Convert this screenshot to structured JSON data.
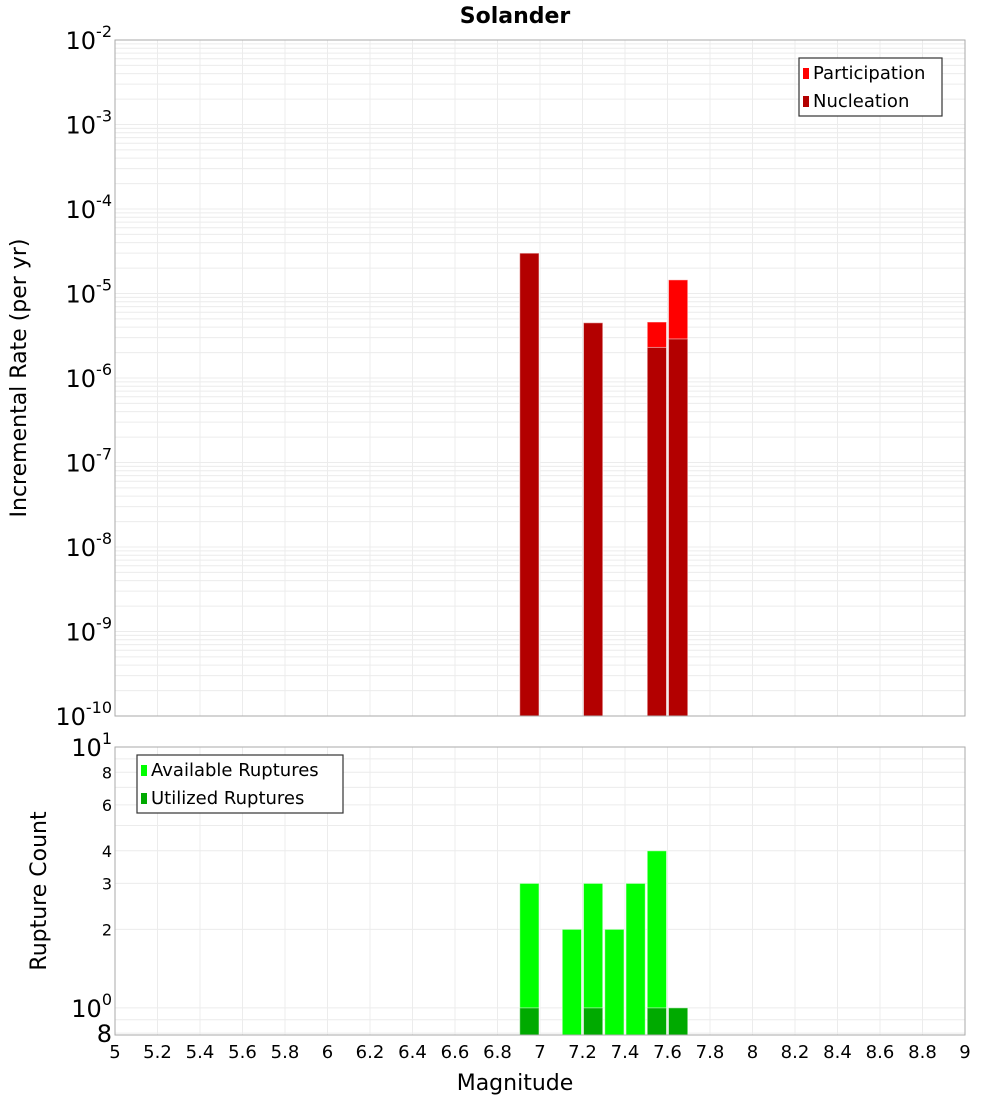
{
  "chart_data": [
    {
      "type": "bar",
      "title": "Solander",
      "xlabel": "",
      "ylabel": "Incremental Rate (per yr)",
      "yscale": "log",
      "xlim": [
        5,
        9
      ],
      "ylim": [
        1e-10,
        0.01
      ],
      "y_tick_labels": [
        {
          "base": "10",
          "exp": "-2",
          "value": 0.01
        },
        {
          "base": "10",
          "exp": "-3",
          "value": 0.001
        },
        {
          "base": "10",
          "exp": "-4",
          "value": 0.0001
        },
        {
          "base": "10",
          "exp": "-5",
          "value": 1e-05
        },
        {
          "base": "10",
          "exp": "-6",
          "value": 1e-06
        },
        {
          "base": "10",
          "exp": "-7",
          "value": 1e-07
        },
        {
          "base": "10",
          "exp": "-8",
          "value": 1e-08
        },
        {
          "base": "10",
          "exp": "-9",
          "value": 1e-09
        },
        {
          "base": "10",
          "exp": "-10",
          "value": 1e-10
        }
      ],
      "legend_position": "top-right",
      "bin_width": 0.1,
      "series": [
        {
          "name": "Participation",
          "color": "#ff0000",
          "x": [
            6.95,
            7.25,
            7.55,
            7.65
          ],
          "values": [
            3e-05,
            4.5e-06,
            4.6e-06,
            1.45e-05
          ]
        },
        {
          "name": "Nucleation",
          "color": "#b30000",
          "x": [
            6.95,
            7.25,
            7.55,
            7.65
          ],
          "values": [
            3e-05,
            4.5e-06,
            2.3e-06,
            2.9e-06
          ]
        }
      ]
    },
    {
      "type": "bar",
      "title": "",
      "xlabel": "Magnitude",
      "ylabel": "Rupture Count",
      "yscale": "log",
      "xlim": [
        5,
        9
      ],
      "ylim": [
        0.787,
        10
      ],
      "x_tick_labels": [
        "5",
        "5.2",
        "5.4",
        "5.6",
        "5.8",
        "6",
        "6.2",
        "6.4",
        "6.6",
        "6.8",
        "7",
        "7.2",
        "7.4",
        "7.6",
        "7.8",
        "8",
        "8.2",
        "8.4",
        "8.6",
        "8.8",
        "9"
      ],
      "y_tick_labels": [
        {
          "base": "10",
          "exp": "1",
          "value": 10,
          "big": true
        },
        {
          "base": "8",
          "exp": "",
          "value": 8
        },
        {
          "base": "6",
          "exp": "",
          "value": 6
        },
        {
          "base": "4",
          "exp": "",
          "value": 4
        },
        {
          "base": "3",
          "exp": "",
          "value": 3
        },
        {
          "base": "2",
          "exp": "",
          "value": 2
        },
        {
          "base": "10",
          "exp": "0",
          "value": 1,
          "big": true
        },
        {
          "base": "8",
          "exp": "",
          "value": 0.8,
          "big": true
        }
      ],
      "legend_position": "top-left",
      "bin_width": 0.1,
      "series": [
        {
          "name": "Available Ruptures",
          "color": "#00ff00",
          "x": [
            6.95,
            7.15,
            7.25,
            7.35,
            7.45,
            7.55,
            7.65
          ],
          "values": [
            3,
            2,
            3,
            2,
            3,
            4,
            1
          ]
        },
        {
          "name": "Utilized Ruptures",
          "color": "#00aa00",
          "x": [
            6.95,
            7.25,
            7.55,
            7.65
          ],
          "values": [
            1,
            1,
            1,
            1
          ]
        }
      ]
    }
  ]
}
